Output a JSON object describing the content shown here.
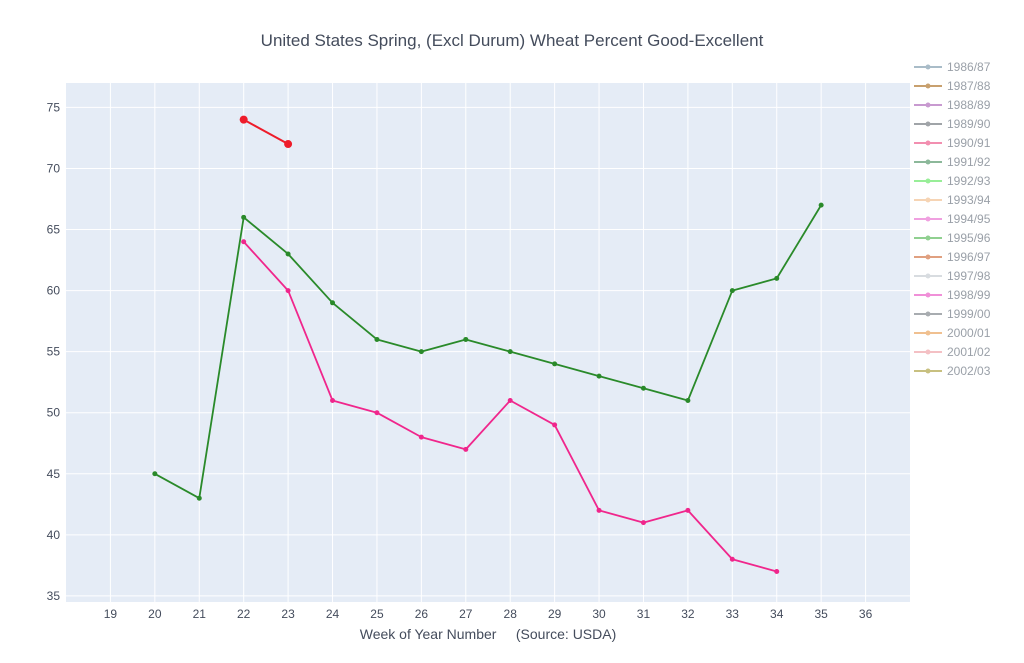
{
  "chart_data": {
    "type": "line",
    "title": "United States Spring, (Excl Durum) Wheat Percent Good-Excellent",
    "xlabel": "Week of Year Number     (Source: USDA)",
    "ylabel": "",
    "xlim": [
      18,
      37
    ],
    "ylim": [
      34.5,
      77
    ],
    "x_ticks": [
      19,
      20,
      21,
      22,
      23,
      24,
      25,
      26,
      27,
      28,
      29,
      30,
      31,
      32,
      33,
      34,
      35,
      36
    ],
    "y_ticks": [
      35,
      40,
      45,
      50,
      55,
      60,
      65,
      70,
      75
    ],
    "grid": true,
    "legend_position": "right",
    "background_color": "#e5ecf6",
    "series": [
      {
        "name": "1986/87",
        "color": "#a9bcc8",
        "x": [],
        "y": []
      },
      {
        "name": "1987/88",
        "color": "#c8a06e",
        "x": [],
        "y": []
      },
      {
        "name": "1988/89",
        "color": "#c89ad0",
        "x": [],
        "y": []
      },
      {
        "name": "1989/90",
        "color": "#a0a4a8",
        "x": [],
        "y": []
      },
      {
        "name": "1990/91",
        "color": "#f28fb0",
        "x": [],
        "y": []
      },
      {
        "name": "1991/92",
        "color": "#8cb89a",
        "x": [],
        "y": []
      },
      {
        "name": "1992/93",
        "color": "#98ee98",
        "x": [],
        "y": []
      },
      {
        "name": "1993/94",
        "color": "#f6d4b4",
        "x": [],
        "y": []
      },
      {
        "name": "1994/95",
        "color": "#f0a0e0",
        "x": [],
        "y": []
      },
      {
        "name": "1995/96",
        "color": "#90d090",
        "x": [],
        "y": []
      },
      {
        "name": "1996/97",
        "color": "#e0a080",
        "x": [],
        "y": []
      },
      {
        "name": "1997/98",
        "color": "#d8dce0",
        "x": [],
        "y": []
      },
      {
        "name": "1998/99",
        "color": "#f090d8",
        "x": [],
        "y": []
      },
      {
        "name": "1999/00",
        "color": "#a8acb0",
        "x": [],
        "y": []
      },
      {
        "name": "2000/01",
        "color": "#f0c090",
        "x": [],
        "y": []
      },
      {
        "name": "2001/02",
        "color": "#f4c0c4",
        "x": [],
        "y": []
      },
      {
        "name": "2002/03",
        "color": "#c8c080",
        "x": [],
        "y": []
      },
      {
        "color": "#2a8a2a",
        "marker_size": 2.5,
        "line_width": 1.8,
        "x": [
          20,
          21,
          22,
          23,
          24,
          25,
          26,
          27,
          28,
          29,
          30,
          31,
          32,
          33,
          34,
          35
        ],
        "y": [
          45,
          43,
          66,
          63,
          59,
          56,
          55,
          56,
          55,
          54,
          53,
          52,
          51,
          60,
          61,
          67
        ]
      },
      {
        "color": "#f0268c",
        "marker_size": 2.5,
        "line_width": 1.8,
        "x": [
          22,
          23,
          24,
          25,
          26,
          27,
          28,
          29,
          30,
          31,
          32,
          33,
          34
        ],
        "y": [
          64,
          60,
          51,
          50,
          48,
          47,
          51,
          49,
          42,
          41,
          42,
          38,
          37
        ]
      },
      {
        "color": "#ee1c2a",
        "marker_size": 4,
        "line_width": 2,
        "x": [
          22,
          23
        ],
        "y": [
          74,
          72
        ]
      }
    ]
  }
}
